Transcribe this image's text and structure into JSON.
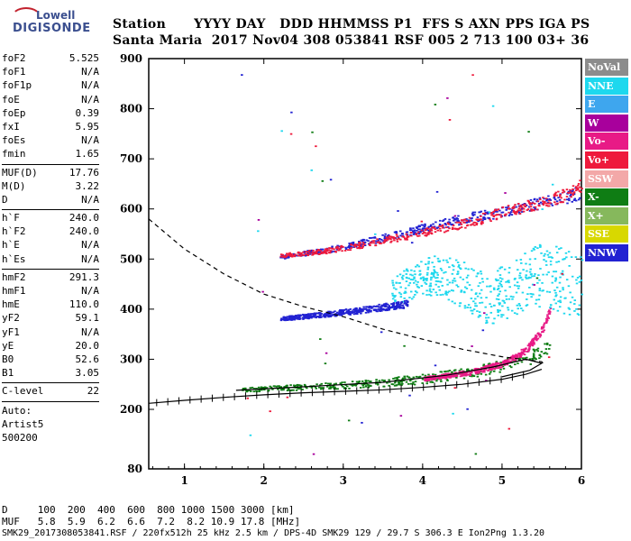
{
  "logo": {
    "line1": "Lowell",
    "line2": "DIGISONDE"
  },
  "header": {
    "line1": "Station      YYYY DAY   DDD HHMMSS P1  FFS S AXN PPS IGA PS",
    "line2": "Santa Maria  2017 Nov04 308 053841 RSF 005 2 713 100 03+ 36"
  },
  "params_group1": [
    {
      "name": "foF2",
      "value": "5.525"
    },
    {
      "name": "foF1",
      "value": "N/A"
    },
    {
      "name": "foF1p",
      "value": "N/A"
    },
    {
      "name": "foE",
      "value": "N/A"
    },
    {
      "name": "foEp",
      "value": "0.39"
    },
    {
      "name": "fxI",
      "value": "5.95"
    },
    {
      "name": "foEs",
      "value": "N/A"
    },
    {
      "name": "fmin",
      "value": "1.65"
    }
  ],
  "params_group2": [
    {
      "name": "MUF(D)",
      "value": "17.76"
    },
    {
      "name": "M(D)",
      "value": "3.22"
    },
    {
      "name": "D",
      "value": "N/A"
    }
  ],
  "params_group3": [
    {
      "name": "h`F",
      "value": "240.0"
    },
    {
      "name": "h`F2",
      "value": "240.0"
    },
    {
      "name": "h`E",
      "value": "N/A"
    },
    {
      "name": "h`Es",
      "value": "N/A"
    }
  ],
  "params_group4": [
    {
      "name": "hmF2",
      "value": "291.3"
    },
    {
      "name": "hmF1",
      "value": "N/A"
    },
    {
      "name": "hmE",
      "value": "110.0"
    },
    {
      "name": "yF2",
      "value": "59.1"
    },
    {
      "name": "yF1",
      "value": "N/A"
    },
    {
      "name": "yE",
      "value": "20.0"
    },
    {
      "name": "B0",
      "value": "52.6"
    },
    {
      "name": "B1",
      "value": "3.05"
    }
  ],
  "params_group5": [
    {
      "name": "C-level",
      "value": "22"
    }
  ],
  "autoscaling": [
    "Auto:",
    "Artist5",
    "500200"
  ],
  "legend": [
    {
      "label": "NoVal",
      "color": "#8c8c8c"
    },
    {
      "label": "NNE",
      "color": "#1ed8ee"
    },
    {
      "label": "E",
      "color": "#3ea6ee"
    },
    {
      "label": "W",
      "color": "#a8009c"
    },
    {
      "label": "Vo-",
      "color": "#e81a86"
    },
    {
      "label": "Vo+",
      "color": "#ee1a3c"
    },
    {
      "label": "SSW",
      "color": "#f3a8a8"
    },
    {
      "label": "X-",
      "color": "#0f7d14"
    },
    {
      "label": "X+",
      "color": "#86b85c"
    },
    {
      "label": "SSE",
      "color": "#d8d800"
    },
    {
      "label": "NNW",
      "color": "#2222d2"
    }
  ],
  "bottom": {
    "d_line": "D     100  200  400  600  800 1000 1500 3000 [km]",
    "muf_line": "MUF   5.8  5.9  6.2  6.6  7.2  8.2 10.9 17.8 [MHz]",
    "footer": "SMK29_2017308053841.RSF / 220fx512h 25 kHz 2.5 km / DPS-4D SMK29 129 / 29.7 S 306.3 E Ion2Png 1.3.20"
  },
  "chart_data": {
    "type": "scatter",
    "xlabel": "",
    "ylabel": "",
    "xlim": [
      0.55,
      6.0
    ],
    "ylim": [
      80,
      900
    ],
    "x_ticks": [
      1,
      2,
      3,
      4,
      5,
      6
    ],
    "y_ticks": [
      80,
      200,
      300,
      400,
      500,
      600,
      700,
      800,
      900
    ],
    "series": [
      {
        "name": "NNW",
        "x": [
          2.2,
          2.6,
          3.0,
          3.4,
          3.8,
          4.2,
          4.6,
          5.0,
          5.4,
          5.8,
          6.0
        ],
        "y": [
          505,
          515,
          525,
          540,
          555,
          570,
          585,
          595,
          610,
          625,
          635
        ]
      },
      {
        "name": "Vo+",
        "x": [
          2.2,
          2.8,
          3.4,
          4.0,
          4.6,
          5.0,
          5.4,
          5.8,
          6.0
        ],
        "y": [
          508,
          518,
          535,
          555,
          575,
          595,
          610,
          630,
          650
        ]
      },
      {
        "name": "X-",
        "x": [
          1.7,
          2.2,
          2.8,
          3.4,
          4.0,
          4.6,
          5.0,
          5.4,
          5.6
        ],
        "y": [
          240,
          244,
          248,
          253,
          262,
          275,
          288,
          310,
          330
        ]
      },
      {
        "name": "Vo-",
        "x": [
          4.0,
          4.6,
          5.0,
          5.3,
          5.5,
          5.6
        ],
        "y": [
          262,
          275,
          292,
          320,
          360,
          400
        ]
      },
      {
        "name": "NNE",
        "x": [
          3.6,
          3.9,
          4.2,
          4.5,
          4.8,
          5.1,
          5.4,
          5.7,
          6.0
        ],
        "y": [
          430,
          460,
          470,
          450,
          420,
          440,
          470,
          460,
          450
        ]
      },
      {
        "name": "NNW",
        "x": [
          2.2,
          2.6,
          3.0,
          3.4,
          3.8
        ],
        "y": [
          382,
          388,
          395,
          403,
          412
        ]
      }
    ],
    "trace_o": {
      "x": [
        0.55,
        1.0,
        1.5,
        2.0,
        2.5,
        3.0,
        3.5,
        4.0,
        4.5,
        5.0,
        5.3,
        5.5
      ],
      "y": [
        212,
        218,
        224,
        229,
        233,
        236,
        239,
        244,
        250,
        260,
        270,
        280
      ]
    },
    "profile": {
      "x": [
        0.55,
        1.0,
        1.5,
        2.0,
        2.5,
        3.0,
        3.5,
        4.0,
        4.5,
        5.0,
        5.5,
        5.525
      ],
      "y": [
        580,
        520,
        470,
        430,
        405,
        385,
        360,
        340,
        320,
        305,
        295,
        291
      ]
    }
  }
}
